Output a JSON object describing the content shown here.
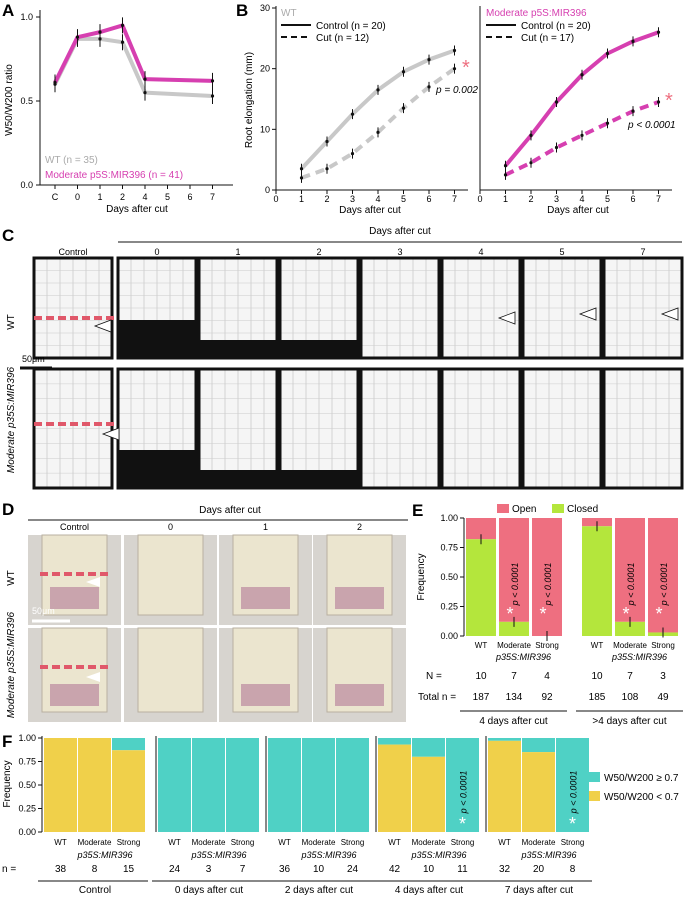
{
  "panels": {
    "A": {
      "label": "A",
      "ylabel": "W50/W200 ratio",
      "xlabel": "Days after cut",
      "legend": [
        "WT (n = 35)",
        "Moderate p5S:MIR396 (n = 41)"
      ]
    },
    "B": {
      "label": "B",
      "ylabel": "Root elongation (mm)",
      "xlabel": "Days after cut",
      "left_title": "WT",
      "right_title": "Moderate p5S:MIR396",
      "left_legend": [
        "Control (n = 20)",
        "Cut (n = 12)"
      ],
      "right_legend": [
        "Control (n = 20)",
        "Cut (n = 17)"
      ],
      "left_p": "p = 0.002",
      "right_p": "p < 0.0001"
    },
    "C": {
      "label": "C",
      "header": "Days after cut",
      "cols": [
        "Control",
        "0",
        "1",
        "2",
        "3",
        "4",
        "5",
        "7"
      ],
      "rows": [
        "WT",
        "Moderate p35S:MIR396"
      ],
      "scalebar": "50μm"
    },
    "D": {
      "label": "D",
      "header": "Days after cut",
      "cols": [
        "Control",
        "0",
        "1",
        "2"
      ],
      "rows": [
        "WT",
        "Moderate p35S:MIR396"
      ],
      "scalebar": "50μm"
    },
    "E": {
      "label": "E",
      "ylabel": "Frequency",
      "legend": [
        "Open",
        "Closed"
      ],
      "groups": [
        "4 days after cut",
        ">4 days after cut"
      ],
      "genotypes": [
        "WT",
        "Moderate",
        "Strong"
      ],
      "construct": "p35S:MIR396",
      "N_label": "N =",
      "total_label": "Total n =",
      "p_text": "p < 0.0001"
    },
    "F": {
      "label": "F",
      "ylabel": "Frequency",
      "n_label": "n =",
      "legend": [
        "W50/W200 ≥ 0.7",
        "W50/W200 < 0.7"
      ],
      "construct": "p35S:MIR396",
      "genotypes": [
        "WT",
        "Moderate",
        "Strong"
      ],
      "p_text": "p < 0.0001"
    }
  },
  "chart_data": [
    {
      "id": "A",
      "type": "line",
      "x": [
        "C",
        "0",
        "1",
        "2",
        "4",
        "5",
        "6",
        "7"
      ],
      "xlabel": "Days after cut",
      "ylabel": "W50/W200 ratio",
      "ylim": [
        0.0,
        1.0
      ],
      "yticks": [
        "0.0",
        "0.5",
        "1.0"
      ],
      "series": [
        {
          "name": "WT (n = 35)",
          "color": "#c8c8c8",
          "points": [
            [
              "C",
              0.6
            ],
            [
              "0",
              0.87
            ],
            [
              "1",
              0.87
            ],
            [
              "2",
              0.85
            ],
            [
              "4",
              0.55
            ],
            [
              "7",
              0.53
            ]
          ]
        },
        {
          "name": "Moderate p5S:MIR396 (n = 41)",
          "color": "#d63fb0",
          "points": [
            [
              "C",
              0.61
            ],
            [
              "0",
              0.88
            ],
            [
              "1",
              0.91
            ],
            [
              "2",
              0.95
            ],
            [
              "4",
              0.63
            ],
            [
              "7",
              0.62
            ]
          ]
        }
      ]
    },
    {
      "id": "B-left",
      "type": "line",
      "title": "WT",
      "x": [
        0,
        1,
        2,
        3,
        4,
        5,
        6,
        7
      ],
      "xlabel": "Days after cut",
      "ylabel": "Root elongation (mm)",
      "ylim": [
        0,
        30
      ],
      "yticks": [
        0,
        10,
        20,
        30
      ],
      "series": [
        {
          "name": "Control (n = 20)",
          "color": "#c8c8c8",
          "dash": false,
          "points": [
            [
              1,
              3.5
            ],
            [
              2,
              8
            ],
            [
              3,
              12.5
            ],
            [
              4,
              16.5
            ],
            [
              5,
              19.5
            ],
            [
              6,
              21.5
            ],
            [
              7,
              23
            ]
          ]
        },
        {
          "name": "Cut (n = 12)",
          "color": "#c8c8c8",
          "dash": true,
          "points": [
            [
              1,
              2
            ],
            [
              2,
              3.5
            ],
            [
              3,
              6
            ],
            [
              4,
              9.5
            ],
            [
              5,
              13.5
            ],
            [
              6,
              17
            ],
            [
              7,
              20
            ]
          ]
        }
      ]
    },
    {
      "id": "B-right",
      "type": "line",
      "title": "Moderate p5S:MIR396",
      "x": [
        0,
        1,
        2,
        3,
        4,
        5,
        6,
        7
      ],
      "xlabel": "Days after cut",
      "ylim": [
        0,
        30
      ],
      "series": [
        {
          "name": "Control (n = 20)",
          "color": "#d63fb0",
          "dash": false,
          "points": [
            [
              1,
              4
            ],
            [
              2,
              9
            ],
            [
              3,
              14.5
            ],
            [
              4,
              19
            ],
            [
              5,
              22.5
            ],
            [
              6,
              24.5
            ],
            [
              7,
              26
            ]
          ]
        },
        {
          "name": "Cut (n = 17)",
          "color": "#d63fb0",
          "dash": true,
          "points": [
            [
              1,
              2.5
            ],
            [
              2,
              4.5
            ],
            [
              3,
              7
            ],
            [
              4,
              9
            ],
            [
              5,
              11
            ],
            [
              6,
              13
            ],
            [
              7,
              14.5
            ]
          ]
        }
      ]
    },
    {
      "id": "E",
      "type": "bar",
      "stacked": true,
      "ylabel": "Frequency",
      "ylim": [
        0.0,
        1.0
      ],
      "yticks": [
        "0.00",
        "0.25",
        "0.50",
        "0.75",
        "1.00"
      ],
      "groups": [
        {
          "name": "4 days after cut",
          "categories": [
            "WT",
            "Moderate",
            "Strong"
          ],
          "closed": [
            0.82,
            0.12,
            0.0
          ],
          "N": [
            10,
            7,
            4
          ],
          "total_n": 187,
          "total_n_by_genotype": [
            187,
            134,
            92
          ]
        },
        {
          "name": ">4 days after cut",
          "categories": [
            "WT",
            "Moderate",
            "Strong"
          ],
          "closed": [
            0.93,
            0.12,
            0.03
          ],
          "N": [
            10,
            7,
            3
          ],
          "total_n": 185,
          "total_n_by_genotype": [
            185,
            108,
            49
          ]
        }
      ],
      "series_colors": {
        "Open": "#ee6f80",
        "Closed": "#b4e63c"
      }
    },
    {
      "id": "F",
      "type": "bar",
      "stacked": true,
      "ylabel": "Frequency",
      "ylim": [
        0.0,
        1.0
      ],
      "yticks": [
        "0.00",
        "0.25",
        "0.50",
        "0.75",
        "1.00"
      ],
      "series_colors": {
        "W50/W200 ≥ 0.7": "#4fd1c5",
        "W50/W200 < 0.7": "#f0d04a"
      },
      "groups": [
        {
          "name": "Control",
          "categories": [
            "WT",
            "Moderate",
            "Strong"
          ],
          "low": [
            1.0,
            1.0,
            0.87
          ],
          "n": [
            38,
            8,
            15
          ]
        },
        {
          "name": "0 days after cut",
          "categories": [
            "WT",
            "Moderate",
            "Strong"
          ],
          "low": [
            0.0,
            0.0,
            0.0
          ],
          "n": [
            24,
            3,
            7
          ]
        },
        {
          "name": "2 days after cut",
          "categories": [
            "WT",
            "Moderate",
            "Strong"
          ],
          "low": [
            0.0,
            0.0,
            0.0
          ],
          "n": [
            36,
            10,
            24
          ]
        },
        {
          "name": "4 days after cut",
          "categories": [
            "WT",
            "Moderate",
            "Strong"
          ],
          "low": [
            0.93,
            0.8,
            0.0
          ],
          "n": [
            42,
            10,
            11
          ]
        },
        {
          "name": "7 days after cut",
          "categories": [
            "WT",
            "Moderate",
            "Strong"
          ],
          "low": [
            0.97,
            0.85,
            0.0
          ],
          "n": [
            32,
            20,
            8
          ]
        }
      ]
    }
  ]
}
